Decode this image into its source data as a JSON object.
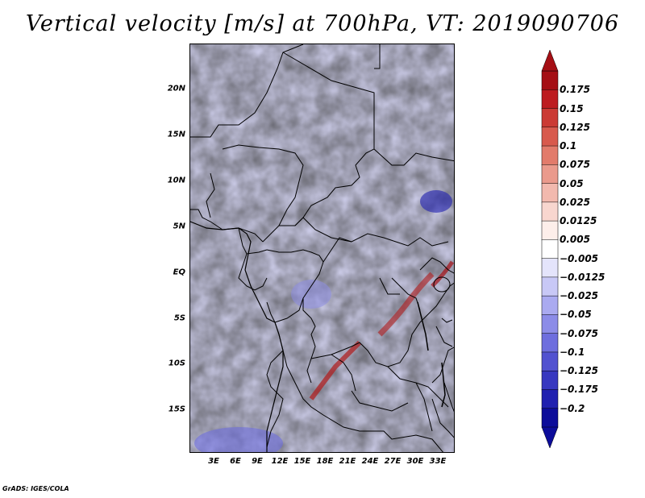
{
  "title": "Vertical velocity [m/s] at 700hPa, VT: 2019090706",
  "footer": "GrADS: IGES/COLA",
  "map": {
    "variable": "Vertical velocity",
    "units": "m/s",
    "level": "700hPa",
    "valid_time": "2019090706",
    "region": "Central Africa",
    "lon_range": [
      0,
      36
    ],
    "lat_range": [
      -20,
      25
    ],
    "lat_ticks": [
      "20N",
      "15N",
      "10N",
      "5N",
      "EQ",
      "5S",
      "10S",
      "15S"
    ],
    "lon_ticks": [
      "3E",
      "6E",
      "9E",
      "12E",
      "15E",
      "18E",
      "21E",
      "24E",
      "27E",
      "30E",
      "33E"
    ]
  },
  "colorbar": {
    "levels": [
      "0.175",
      "0.15",
      "0.125",
      "0.1",
      "0.075",
      "0.05",
      "0.025",
      "0.0125",
      "0.005",
      "−0.005",
      "−0.0125",
      "−0.025",
      "−0.05",
      "−0.075",
      "−0.1",
      "−0.125",
      "−0.175",
      "−0.2"
    ],
    "colors": [
      "#a50f15",
      "#bd1c20",
      "#cb3a34",
      "#d85a4d",
      "#e27b6b",
      "#ea9a8c",
      "#f2b9ae",
      "#f8d6cf",
      "#fdeeea",
      "#ffffff",
      "#e4e4fb",
      "#c8c8f6",
      "#aaaaf0",
      "#8c8ce8",
      "#6e6ede",
      "#5252d0",
      "#3838c0",
      "#2020b0",
      "#0c0c9a"
    ]
  }
}
